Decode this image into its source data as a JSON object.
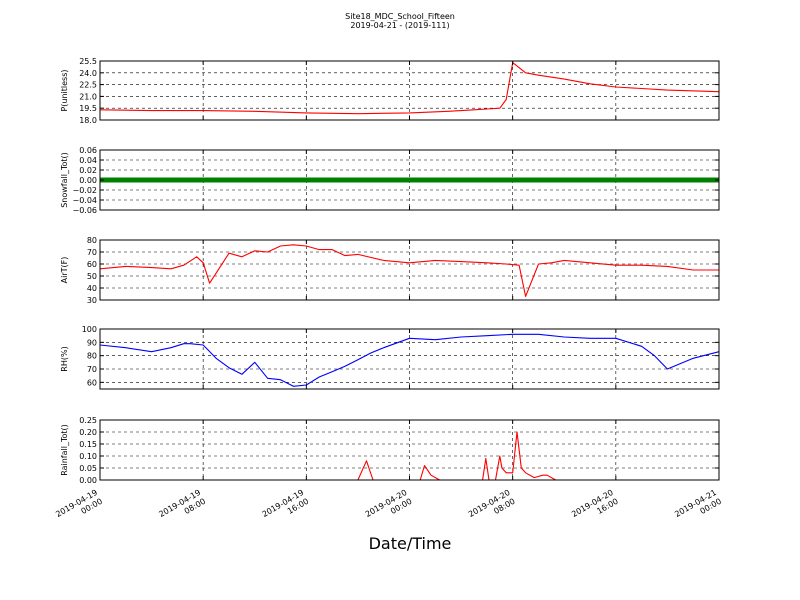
{
  "figure": {
    "title": "Site18_MDC_School_Fifteen",
    "subtitle": "2019-04-21 - (2019-111)",
    "xlabel": "Date/Time"
  },
  "chart_data": [
    {
      "type": "line",
      "ylabel": "P(unitless)",
      "ylim": [
        18.0,
        25.5
      ],
      "yticks": [
        "18.0",
        "19.5",
        "21.0",
        "22.5",
        "24.0",
        "25.5"
      ],
      "xlim": [
        "2019-04-19 00:00",
        "2019-04-21 00:00"
      ],
      "xticks": [
        "2019-04-19 00:00",
        "2019-04-19 08:00",
        "2019-04-19 16:00",
        "2019-04-20 00:00",
        "2019-04-20 08:00",
        "2019-04-20 16:00",
        "2019-04-21 00:00"
      ],
      "grid": true,
      "series": [
        {
          "color": "#ff0000",
          "x": [
            "2019-04-19 00:00",
            "2019-04-19 04:00",
            "2019-04-19 08:00",
            "2019-04-19 12:00",
            "2019-04-19 16:00",
            "2019-04-19 20:00",
            "2019-04-20 00:00",
            "2019-04-20 03:00",
            "2019-04-20 05:00",
            "2019-04-20 06:00",
            "2019-04-20 07:00",
            "2019-04-20 07:30",
            "2019-04-20 08:00",
            "2019-04-20 09:00",
            "2019-04-20 10:00",
            "2019-04-20 12:00",
            "2019-04-20 14:00",
            "2019-04-20 16:00",
            "2019-04-20 18:00",
            "2019-04-20 20:00",
            "2019-04-21 00:00"
          ],
          "y": [
            19.3,
            19.2,
            19.2,
            19.1,
            18.9,
            18.8,
            18.9,
            19.1,
            19.3,
            19.4,
            19.5,
            20.6,
            25.3,
            24.0,
            23.7,
            23.2,
            22.6,
            22.2,
            22.0,
            21.8,
            21.6
          ]
        }
      ]
    },
    {
      "type": "line",
      "ylabel": "Snowfall_Tot()",
      "ylim": [
        -0.06,
        0.06
      ],
      "yticks": [
        "−0.06",
        "−0.04",
        "−0.02",
        "0.00",
        "0.02",
        "0.04",
        "0.06"
      ],
      "grid": true,
      "series": [
        {
          "color": "#008000",
          "x": [
            "2019-04-19 00:00",
            "2019-04-21 00:00"
          ],
          "y": [
            0.0,
            0.0
          ]
        }
      ]
    },
    {
      "type": "line",
      "ylabel": "AirT(F)",
      "ylim": [
        30,
        80
      ],
      "yticks": [
        "30",
        "40",
        "50",
        "60",
        "70",
        "80"
      ],
      "grid": true,
      "series": [
        {
          "color": "#ff0000",
          "x": [
            "2019-04-19 00:00",
            "2019-04-19 02:00",
            "2019-04-19 04:00",
            "2019-04-19 05:30",
            "2019-04-19 06:30",
            "2019-04-19 07:30",
            "2019-04-19 08:00",
            "2019-04-19 08:30",
            "2019-04-19 10:00",
            "2019-04-19 11:00",
            "2019-04-19 12:00",
            "2019-04-19 13:00",
            "2019-04-19 14:00",
            "2019-04-19 15:00",
            "2019-04-19 16:00",
            "2019-04-19 17:00",
            "2019-04-19 18:00",
            "2019-04-19 19:00",
            "2019-04-19 20:00",
            "2019-04-19 22:00",
            "2019-04-20 00:00",
            "2019-04-20 02:00",
            "2019-04-20 04:00",
            "2019-04-20 06:00",
            "2019-04-20 07:30",
            "2019-04-20 08:30",
            "2019-04-20 09:00",
            "2019-04-20 10:00",
            "2019-04-20 11:00",
            "2019-04-20 12:00",
            "2019-04-20 14:00",
            "2019-04-20 16:00",
            "2019-04-20 18:00",
            "2019-04-20 20:00",
            "2019-04-20 22:00",
            "2019-04-21 00:00"
          ],
          "y": [
            56,
            58,
            57,
            56,
            59,
            66,
            61,
            44,
            69,
            66,
            71,
            70,
            75,
            76,
            75,
            72,
            72,
            67,
            68,
            63,
            61,
            63,
            62,
            61,
            60,
            59,
            33,
            60,
            61,
            63,
            61,
            59,
            59,
            58,
            55,
            55
          ]
        }
      ]
    },
    {
      "type": "line",
      "ylabel": "RH(%)",
      "ylim": [
        55,
        100
      ],
      "yticks": [
        "60",
        "70",
        "80",
        "90",
        "100"
      ],
      "grid": true,
      "series": [
        {
          "color": "#0000ff",
          "x": [
            "2019-04-19 00:00",
            "2019-04-19 02:00",
            "2019-04-19 04:00",
            "2019-04-19 05:30",
            "2019-04-19 06:30",
            "2019-04-19 07:00",
            "2019-04-19 08:00",
            "2019-04-19 09:00",
            "2019-04-19 10:00",
            "2019-04-19 11:00",
            "2019-04-19 12:00",
            "2019-04-19 13:00",
            "2019-04-19 14:00",
            "2019-04-19 15:00",
            "2019-04-19 16:00",
            "2019-04-19 17:00",
            "2019-04-19 18:00",
            "2019-04-19 19:00",
            "2019-04-19 20:00",
            "2019-04-19 21:00",
            "2019-04-19 22:00",
            "2019-04-20 00:00",
            "2019-04-20 02:00",
            "2019-04-20 04:00",
            "2019-04-20 06:00",
            "2019-04-20 08:00",
            "2019-04-20 10:00",
            "2019-04-20 12:00",
            "2019-04-20 14:00",
            "2019-04-20 16:00",
            "2019-04-20 18:00",
            "2019-04-20 19:00",
            "2019-04-20 20:00",
            "2019-04-20 22:00",
            "2019-04-21 00:00"
          ],
          "y": [
            88,
            86,
            83,
            86,
            89,
            89,
            88,
            78,
            71,
            66,
            75,
            63,
            62,
            57,
            58,
            64,
            68,
            72,
            77,
            82,
            86,
            93,
            92,
            94,
            95,
            96,
            96,
            94,
            93,
            93,
            87,
            80,
            70,
            78,
            83
          ]
        }
      ]
    },
    {
      "type": "line",
      "ylabel": "Rainfall_Tot()",
      "ylim": [
        0.0,
        0.25
      ],
      "yticks": [
        "0.00",
        "0.05",
        "0.10",
        "0.15",
        "0.20",
        "0.25"
      ],
      "grid": true,
      "series": [
        {
          "color": "#ff0000",
          "x": [
            "2019-04-19 00:00",
            "2019-04-19 20:00",
            "2019-04-19 20:40",
            "2019-04-19 21:10",
            "2019-04-20 00:50",
            "2019-04-20 01:10",
            "2019-04-20 01:40",
            "2019-04-20 02:20",
            "2019-04-20 05:40",
            "2019-04-20 05:55",
            "2019-04-20 06:10",
            "2019-04-20 06:40",
            "2019-04-20 07:00",
            "2019-04-20 07:10",
            "2019-04-20 07:30",
            "2019-04-20 08:00",
            "2019-04-20 08:20",
            "2019-04-20 08:40",
            "2019-04-20 09:00",
            "2019-04-20 09:40",
            "2019-04-20 10:20",
            "2019-04-20 10:40",
            "2019-04-20 11:20",
            "2019-04-21 00:00"
          ],
          "y": [
            0.0,
            0.0,
            0.08,
            0.0,
            0.0,
            0.06,
            0.02,
            0.0,
            0.0,
            0.09,
            0.0,
            0.0,
            0.1,
            0.05,
            0.03,
            0.03,
            0.2,
            0.05,
            0.03,
            0.01,
            0.02,
            0.02,
            0.0,
            0.0
          ]
        }
      ]
    }
  ]
}
